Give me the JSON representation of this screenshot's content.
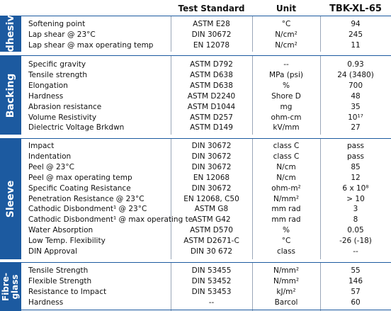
{
  "header": {
    "test_standard": "Test Standard",
    "unit": "Unit",
    "product": "TBK-XL-65"
  },
  "sections": [
    {
      "label": "Adhesive",
      "rows": [
        {
          "property": "Softening point",
          "standard": "ASTM E28",
          "unit": "°C",
          "value": "94"
        },
        {
          "property": "Lap shear @ 23°C",
          "standard": "DIN 30672",
          "unit": "N/cm²",
          "value": "245"
        },
        {
          "property": "Lap shear @ max operating temp",
          "standard": "EN 12078",
          "unit": "N/cm²",
          "value": "11"
        }
      ]
    },
    {
      "label": "Backing",
      "rows": [
        {
          "property": "Specific gravity",
          "standard": "ASTM D792",
          "unit": "--",
          "value": "0.93"
        },
        {
          "property": "Tensile strength",
          "standard": "ASTM D638",
          "unit": "MPa (psi)",
          "value": "24 (3480)"
        },
        {
          "property": "Elongation",
          "standard": "ASTM D638",
          "unit": "%",
          "value": "700"
        },
        {
          "property": "Hardness",
          "standard": "ASTM D2240",
          "unit": "Shore D",
          "value": "48"
        },
        {
          "property": "Abrasion resistance",
          "standard": "ASTM D1044",
          "unit": "mg",
          "value": "35"
        },
        {
          "property": "Volume Resistivity",
          "standard": "ASTM D257",
          "unit": "ohm-cm",
          "value": "10¹⁷"
        },
        {
          "property": "Dielectric Voltage Brkdwn",
          "standard": "ASTM D149",
          "unit": "kV/mm",
          "value": "27"
        }
      ]
    },
    {
      "label": "Sleeve",
      "rows": [
        {
          "property": "Impact",
          "standard": "DIN 30672",
          "unit": "class C",
          "value": "pass"
        },
        {
          "property": "Indentation",
          "standard": "DIN 30672",
          "unit": "class C",
          "value": "pass"
        },
        {
          "property": "Peel @ 23°C",
          "standard": "DIN 30672",
          "unit": "N/cm",
          "value": "85"
        },
        {
          "property": "Peel @ max operating temp",
          "standard": "EN 12068",
          "unit": "N/cm",
          "value": "12"
        },
        {
          "property": "Specific Coating Resistance",
          "standard": "DIN 30672",
          "unit": "ohm-m²",
          "value": "6 x 10⁸"
        },
        {
          "property": "Penetration Resistance @ 23°C",
          "standard": "EN 12068, C50",
          "unit": "N/mm²",
          "value": "> 10"
        },
        {
          "property": "Cathodic Disbondment¹ @ 23°C",
          "standard": "ASTM G8",
          "unit": "mm rad",
          "value": "3"
        },
        {
          "property": "Cathodic Disbondment¹ @ max operating te",
          "standard": "ASTM G42",
          "unit": "mm rad",
          "value": "8"
        },
        {
          "property": "Water Absorption",
          "standard": "ASTM D570",
          "unit": "%",
          "value": "0.05"
        },
        {
          "property": "Low Temp. Flexibility",
          "standard": "ASTM D2671-C",
          "unit": "°C",
          "value": "-26 (-18)"
        },
        {
          "property": "DIN Approval",
          "standard": "DIN 30 672",
          "unit": "class",
          "value": "--"
        }
      ]
    },
    {
      "label_lines": [
        "Fibre-",
        "glass"
      ],
      "rows": [
        {
          "property": "Tensile Strength",
          "standard": "DIN 53455",
          "unit": "N/mm²",
          "value": "55"
        },
        {
          "property": "Flexible Strength",
          "standard": "DIN 53452",
          "unit": "N/mm²",
          "value": "146"
        },
        {
          "property": "Resistance to Impact",
          "standard": "DIN 53453",
          "unit": "kJ/m²",
          "value": "57"
        },
        {
          "property": "Hardness",
          "standard": "--",
          "unit": "Barcol",
          "value": "60"
        }
      ]
    }
  ]
}
